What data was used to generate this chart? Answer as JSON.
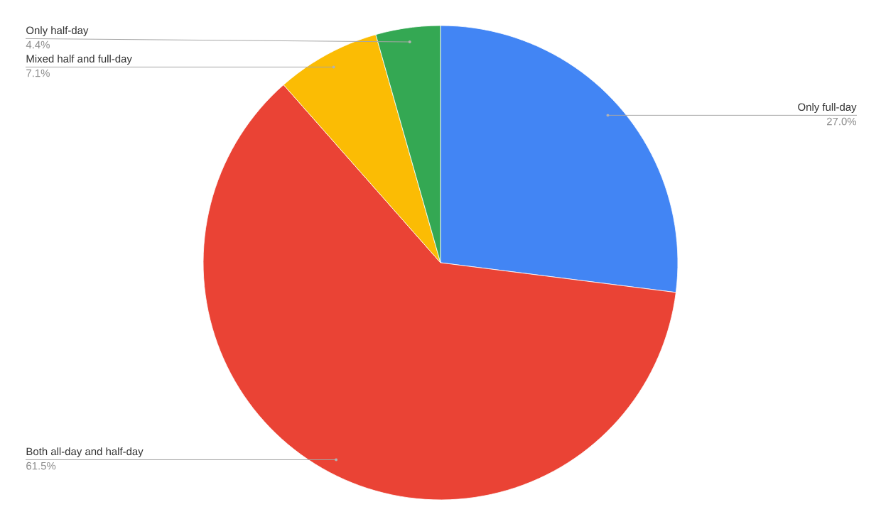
{
  "chart_data": {
    "type": "pie",
    "categories": [
      "Only full-day",
      "Both all-day and half-day",
      "Mixed half and full-day",
      "Only half-day"
    ],
    "values": [
      27.0,
      61.5,
      7.1,
      4.4
    ],
    "value_labels": [
      "27.0%",
      "61.5%",
      "7.1%",
      "4.4%"
    ],
    "colors": [
      "#4285f4",
      "#ea4335",
      "#fbbc04",
      "#34a853"
    ]
  }
}
